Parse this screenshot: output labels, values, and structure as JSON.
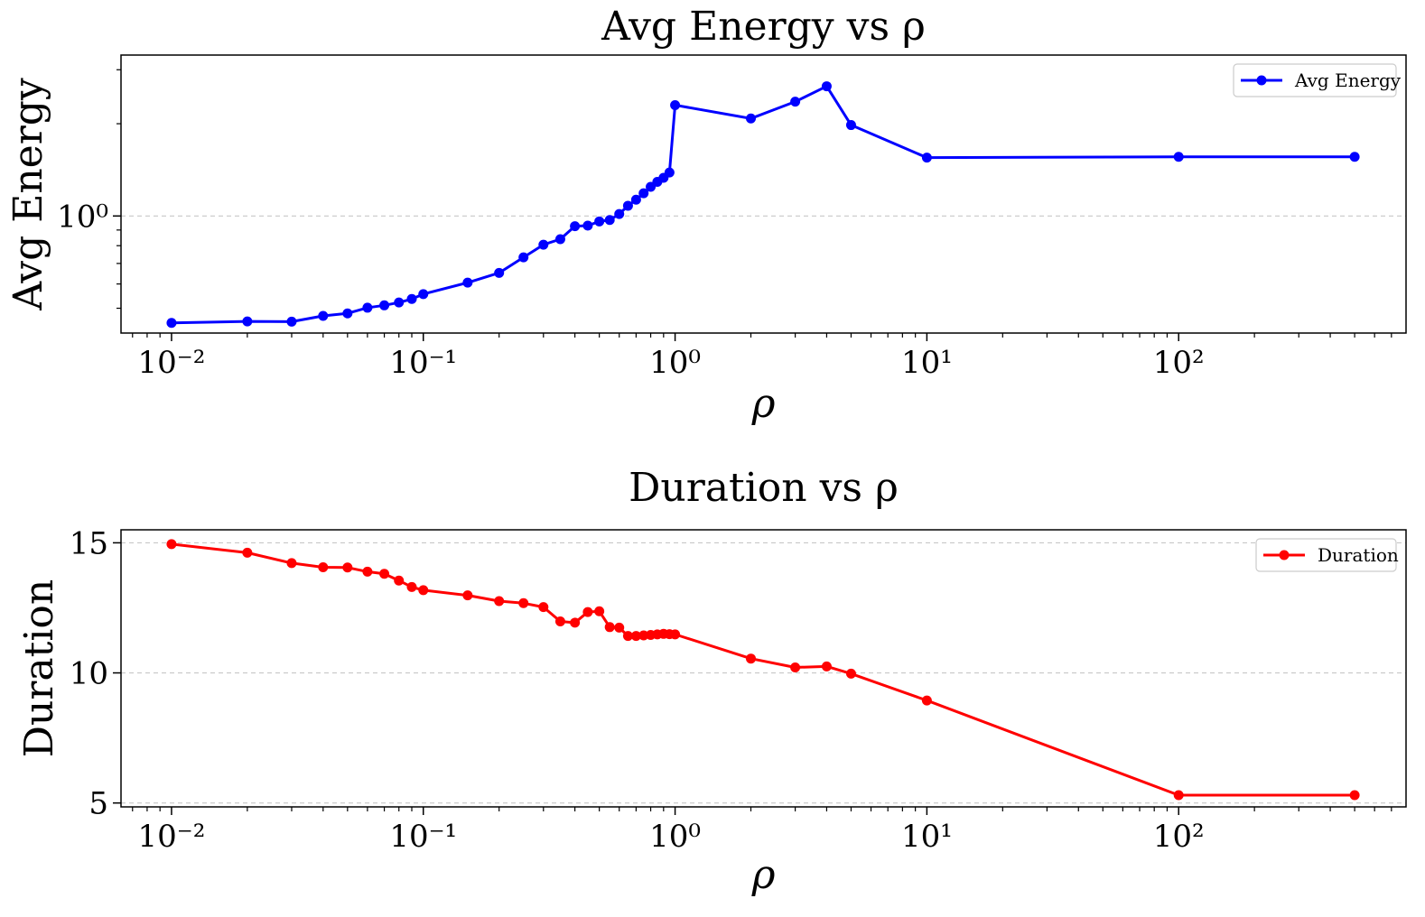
{
  "chart_data": [
    {
      "type": "line",
      "title": "Avg Energy vs ρ",
      "xlabel": "ρ",
      "ylabel": "Avg Energy",
      "xscale": "log",
      "yscale": "log",
      "xlim": [
        0.0063,
        800
      ],
      "ylim": [
        0.415,
        3.35
      ],
      "xticks": [
        {
          "value": 0.01,
          "label": "10⁻²"
        },
        {
          "value": 0.1,
          "label": "10⁻¹"
        },
        {
          "value": 1,
          "label": "10⁰"
        },
        {
          "value": 10,
          "label": "10¹"
        },
        {
          "value": 100,
          "label": "10²"
        }
      ],
      "yticks": [
        {
          "value": 1,
          "label": "10⁰"
        }
      ],
      "grid": "y-dashed",
      "legend_position": "top-right",
      "series": [
        {
          "name": "Avg Energy",
          "color": "#0000ff",
          "x": [
            0.01,
            0.02,
            0.03,
            0.04,
            0.05,
            0.06,
            0.07,
            0.08,
            0.09,
            0.1,
            0.15,
            0.2,
            0.25,
            0.3,
            0.35,
            0.4,
            0.45,
            0.5,
            0.55,
            0.6,
            0.65,
            0.7,
            0.75,
            0.8,
            0.85,
            0.9,
            0.95,
            1,
            2,
            3,
            4,
            5,
            10,
            100,
            500
          ],
          "values": [
            0.448,
            0.453,
            0.452,
            0.472,
            0.481,
            0.502,
            0.511,
            0.522,
            0.536,
            0.556,
            0.606,
            0.652,
            0.733,
            0.806,
            0.84,
            0.926,
            0.93,
            0.96,
            0.97,
            1.015,
            1.08,
            1.13,
            1.186,
            1.245,
            1.292,
            1.332,
            1.386,
            2.3,
            2.08,
            2.36,
            2.65,
            1.98,
            1.55,
            1.56,
            1.56
          ]
        }
      ]
    },
    {
      "type": "line",
      "title": "Duration vs ρ",
      "xlabel": "ρ",
      "ylabel": "Duration",
      "xscale": "log",
      "yscale": "linear",
      "xlim": [
        0.0063,
        800
      ],
      "ylim": [
        4.85,
        15.5
      ],
      "xticks": [
        {
          "value": 0.01,
          "label": "10⁻²"
        },
        {
          "value": 0.1,
          "label": "10⁻¹"
        },
        {
          "value": 1,
          "label": "10⁰"
        },
        {
          "value": 10,
          "label": "10¹"
        },
        {
          "value": 100,
          "label": "10²"
        }
      ],
      "yticks": [
        {
          "value": 5,
          "label": "5"
        },
        {
          "value": 10,
          "label": "10"
        },
        {
          "value": 15,
          "label": "15"
        }
      ],
      "grid": "y-dashed",
      "legend_position": "top-right",
      "series": [
        {
          "name": "Duration",
          "color": "#ff0000",
          "x": [
            0.01,
            0.02,
            0.03,
            0.04,
            0.05,
            0.06,
            0.07,
            0.08,
            0.09,
            0.1,
            0.15,
            0.2,
            0.25,
            0.3,
            0.35,
            0.4,
            0.45,
            0.5,
            0.55,
            0.6,
            0.65,
            0.7,
            0.75,
            0.8,
            0.85,
            0.9,
            0.95,
            1,
            2,
            3,
            4,
            5,
            10,
            100,
            500
          ],
          "values": [
            14.95,
            14.62,
            14.22,
            14.06,
            14.05,
            13.89,
            13.81,
            13.55,
            13.3,
            13.18,
            12.98,
            12.76,
            12.68,
            12.53,
            11.98,
            11.93,
            12.34,
            12.37,
            11.76,
            11.74,
            11.42,
            11.42,
            11.44,
            11.46,
            11.48,
            11.5,
            11.49,
            11.48,
            10.55,
            10.21,
            10.25,
            9.97,
            8.94,
            5.3,
            5.3
          ]
        }
      ]
    }
  ]
}
